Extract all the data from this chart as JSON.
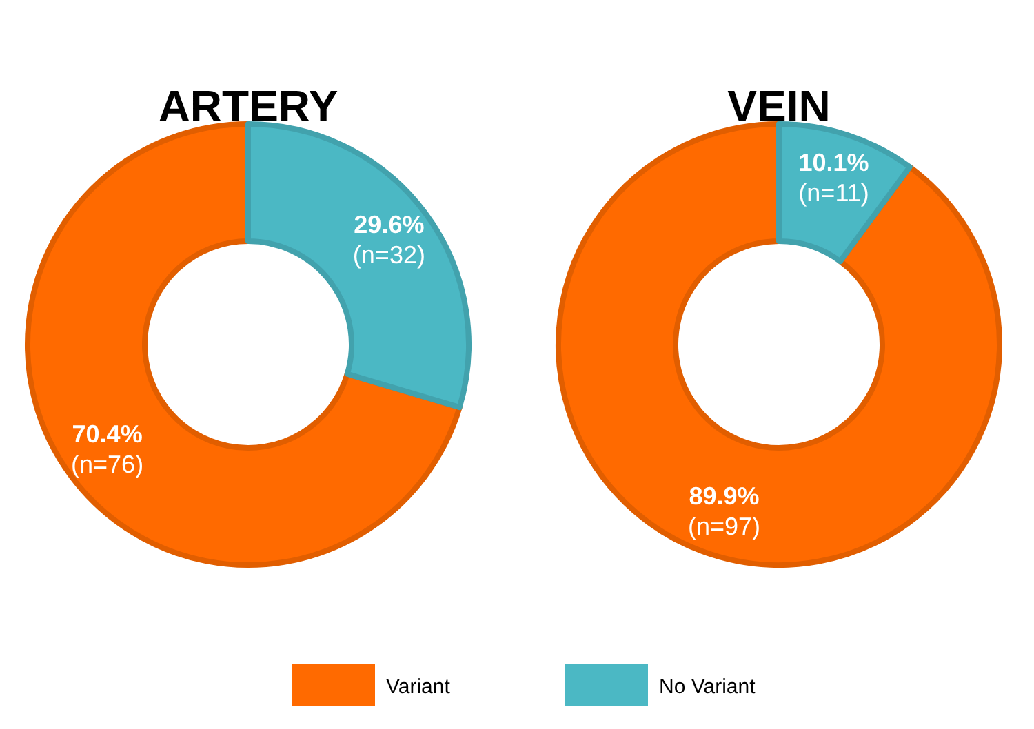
{
  "chart_data": {
    "type": "donut",
    "categories": [
      "Variant",
      "No Variant"
    ],
    "colors": [
      "#ff6a00",
      "#4bb8c4"
    ],
    "legend": "bottom",
    "series": [
      {
        "name": "ARTERY",
        "values": [
          70.4,
          29.6
        ],
        "value_labels": [
          "70.4%\n(n=76)",
          "29.6%\n(n=32)"
        ]
      },
      {
        "name": "VEIN",
        "values": [
          89.9,
          10.1
        ],
        "value_labels": [
          "89.9%\n(n=97)",
          "10.1%\n(n=11)"
        ]
      }
    ]
  }
}
